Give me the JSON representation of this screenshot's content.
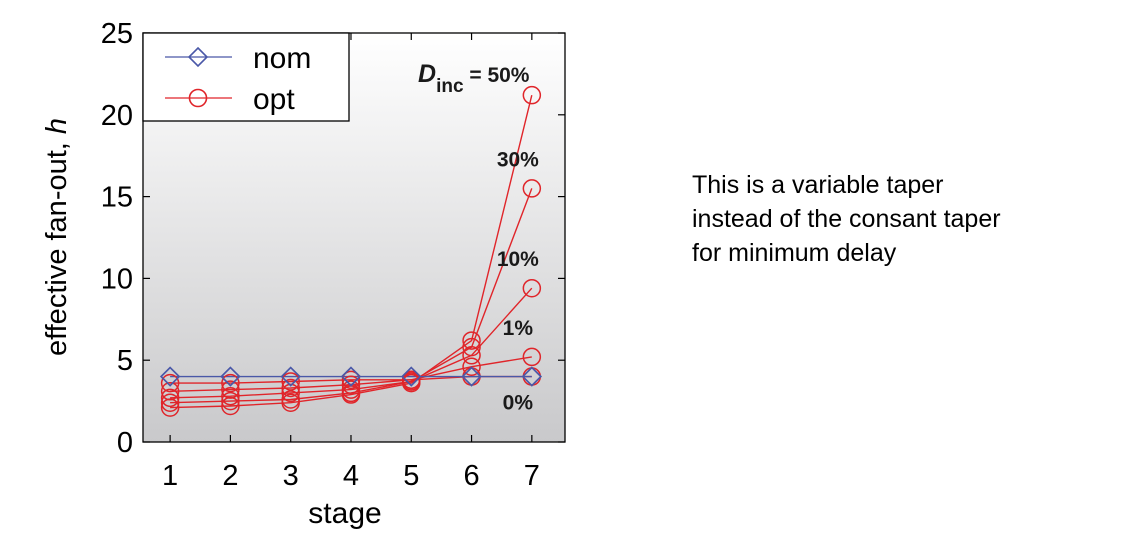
{
  "chart_data": {
    "type": "line",
    "xlabel": "stage",
    "ylabel_main": "effective fan-out, ",
    "ylabel_var": "h",
    "x": [
      1,
      2,
      3,
      4,
      5,
      6,
      7
    ],
    "xlim": [
      0.55,
      7.55
    ],
    "ylim": [
      0,
      25
    ],
    "xticks": [
      1,
      2,
      3,
      4,
      5,
      6,
      7
    ],
    "yticks": [
      0,
      5,
      10,
      15,
      20,
      25
    ],
    "grid": false,
    "legend": {
      "position": "top-left",
      "entries": [
        {
          "label": "nom",
          "marker": "diamond",
          "color": "#4a58a8"
        },
        {
          "label": "opt",
          "marker": "circle",
          "color": "#e0252a"
        }
      ]
    },
    "series": [
      {
        "name": "nom",
        "group": "nom",
        "values": [
          4.0,
          4.0,
          4.0,
          4.0,
          4.0,
          4.0,
          4.0
        ]
      },
      {
        "label": "0%",
        "group": "opt",
        "values": [
          3.6,
          3.6,
          3.7,
          3.8,
          3.8,
          4.0,
          4.0
        ]
      },
      {
        "label": "1%",
        "group": "opt",
        "values": [
          3.1,
          3.2,
          3.3,
          3.5,
          3.8,
          4.6,
          5.2
        ]
      },
      {
        "label": "10%",
        "group": "opt",
        "values": [
          2.7,
          2.8,
          3.0,
          3.2,
          3.7,
          5.3,
          9.4
        ]
      },
      {
        "label": "30%",
        "group": "opt",
        "values": [
          2.4,
          2.5,
          2.6,
          3.0,
          3.7,
          5.8,
          15.5
        ]
      },
      {
        "label": "50%",
        "group": "opt",
        "values": [
          2.1,
          2.2,
          2.4,
          2.9,
          3.6,
          6.2,
          21.2
        ]
      }
    ],
    "annotation": {
      "var": "D",
      "sub": "inc",
      "text": " = 50%"
    }
  },
  "caption": {
    "lines": [
      "This is a variable taper",
      "instead of the consant taper",
      "for minimum delay"
    ]
  }
}
